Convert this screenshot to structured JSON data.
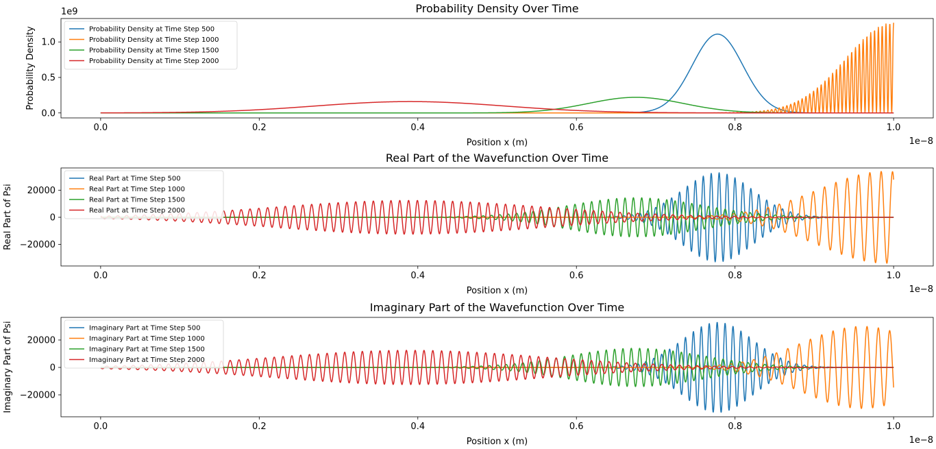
{
  "chart_data": [
    {
      "type": "line",
      "title": "Probability Density Over Time",
      "xlabel": "Position x (m)",
      "ylabel": "Probability Density",
      "x_offset_label": "1e−8",
      "y_offset_label": "1e9",
      "xlim": [
        -0.05,
        1.05
      ],
      "ylim": [
        -0.07,
        1.33
      ],
      "x_ticks": [
        0.0,
        0.2,
        0.4,
        0.6,
        0.8,
        1.0
      ],
      "x_tick_labels": [
        "0.0",
        "0.2",
        "0.4",
        "0.6",
        "0.8",
        "1.0"
      ],
      "y_ticks": [
        0.0,
        0.5,
        1.0
      ],
      "y_tick_labels": [
        "0.0",
        "0.5",
        "1.0"
      ],
      "grid": false,
      "legend_position": "top-left",
      "series": [
        {
          "name": "Probability Density at Time Step 500",
          "color": "#1f77b4",
          "shape": "envelope",
          "center": 0.778,
          "width": 0.045,
          "peak": 1.11,
          "start": 0.0,
          "end": 1.0
        },
        {
          "name": "Probability Density at Time Step 1000",
          "color": "#ff7f0e",
          "shape": "oscillating-envelope",
          "center": 1.0,
          "width": 0.085,
          "peak": 1.27,
          "cycles_per_unit": 208,
          "start": 0.77,
          "end": 1.0
        },
        {
          "name": "Probability Density at Time Step 1500",
          "color": "#2ca02c",
          "shape": "envelope",
          "center": 0.675,
          "width": 0.085,
          "peak": 0.22,
          "start": 0.0,
          "end": 1.0
        },
        {
          "name": "Probability Density at Time Step 2000",
          "color": "#d62728",
          "shape": "envelope",
          "center": 0.39,
          "width": 0.17,
          "peak": 0.16,
          "start": 0.0,
          "end": 1.0
        }
      ]
    },
    {
      "type": "line",
      "title": "Real Part of the Wavefunction Over Time",
      "xlabel": "Position x (m)",
      "ylabel": "Real Part of Psi",
      "x_offset_label": "1e−8",
      "xlim": [
        -0.05,
        1.05
      ],
      "ylim": [
        -36000,
        36500
      ],
      "x_ticks": [
        0.0,
        0.2,
        0.4,
        0.6,
        0.8,
        1.0
      ],
      "x_tick_labels": [
        "0.0",
        "0.2",
        "0.4",
        "0.6",
        "0.8",
        "1.0"
      ],
      "y_ticks": [
        -20000,
        0,
        20000
      ],
      "y_tick_labels": [
        "−20000",
        "0",
        "20000"
      ],
      "grid": false,
      "legend_position": "top-left",
      "series": [
        {
          "name": "Real Part at Time Step 500",
          "color": "#1f77b4",
          "shape": "wave-packet",
          "center": 0.778,
          "width": 0.045,
          "amplitude": 33000,
          "cycles_per_unit": 100,
          "phase": 0.0
        },
        {
          "name": "Real Part at Time Step 1000",
          "color": "#ff7f0e",
          "shape": "wave-packet",
          "center": 0.99,
          "width": 0.085,
          "amplitude": 34000,
          "cycles_per_unit": 70,
          "phase": 0.6
        },
        {
          "name": "Real Part at Time Step 1500",
          "color": "#2ca02c",
          "shape": "wave-packet",
          "center": 0.675,
          "width": 0.085,
          "amplitude": 14500,
          "cycles_per_unit": 95,
          "phase": 1.1
        },
        {
          "name": "Real Part at Time Step 2000",
          "color": "#d62728",
          "shape": "wave-packet",
          "center": 0.39,
          "width": 0.17,
          "amplitude": 12500,
          "cycles_per_unit": 90,
          "phase": 0.3
        }
      ]
    },
    {
      "type": "line",
      "title": "Imaginary Part of the Wavefunction Over Time",
      "xlabel": "Position x (m)",
      "ylabel": "Imaginary Part of Psi",
      "x_offset_label": "1e−8",
      "xlim": [
        -0.05,
        1.05
      ],
      "ylim": [
        -36000,
        36500
      ],
      "x_ticks": [
        0.0,
        0.2,
        0.4,
        0.6,
        0.8,
        1.0
      ],
      "x_tick_labels": [
        "0.0",
        "0.2",
        "0.4",
        "0.6",
        "0.8",
        "1.0"
      ],
      "y_ticks": [
        -20000,
        0,
        20000
      ],
      "y_tick_labels": [
        "−20000",
        "0",
        "20000"
      ],
      "grid": false,
      "legend_position": "top-left",
      "series": [
        {
          "name": "Imaginary Part at Time Step 500",
          "color": "#1f77b4",
          "shape": "wave-packet",
          "center": 0.778,
          "width": 0.045,
          "amplitude": 33000,
          "cycles_per_unit": 100,
          "phase": 1.571
        },
        {
          "name": "Imaginary Part at Time Step 1000",
          "color": "#ff7f0e",
          "shape": "wave-packet",
          "center": 0.96,
          "width": 0.075,
          "amplitude": 30000,
          "cycles_per_unit": 70,
          "phase": 2.17
        },
        {
          "name": "Imaginary Part at Time Step 1500",
          "color": "#2ca02c",
          "shape": "wave-packet",
          "center": 0.675,
          "width": 0.085,
          "amplitude": 14000,
          "cycles_per_unit": 95,
          "phase": 2.67
        },
        {
          "name": "Imaginary Part at Time Step 2000",
          "color": "#d62728",
          "shape": "wave-packet",
          "center": 0.39,
          "width": 0.17,
          "amplitude": 12500,
          "cycles_per_unit": 90,
          "phase": 1.87
        }
      ]
    }
  ]
}
